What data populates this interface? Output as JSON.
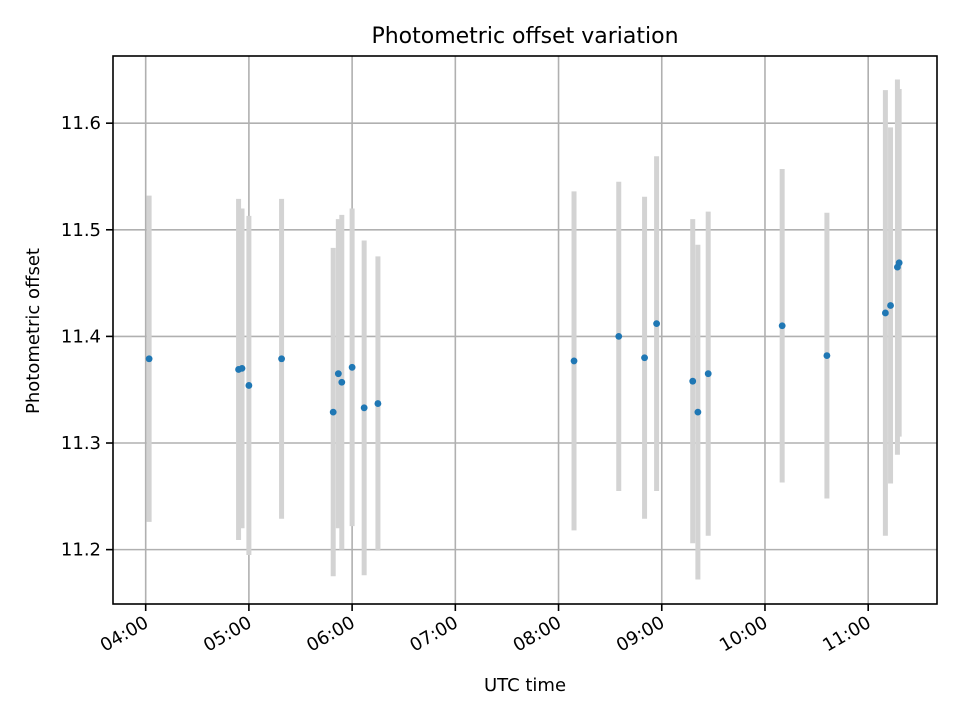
{
  "chart_data": {
    "type": "scatter",
    "title": "Photometric offset variation",
    "xlabel": "UTC time",
    "ylabel": "Photometric offset",
    "x_ticks": [
      "04:00",
      "05:00",
      "06:00",
      "07:00",
      "08:00",
      "09:00",
      "10:00",
      "11:00"
    ],
    "y_ticks": [
      "11.2",
      "11.3",
      "11.4",
      "11.5",
      "11.6"
    ],
    "xlim": [
      "03:41",
      "11:40"
    ],
    "ylim": [
      11.149,
      11.663
    ],
    "grid": true,
    "point_color": "#1f77b4",
    "errorbar_color": "#d3d3d3",
    "series": [
      {
        "points": [
          {
            "x": "04:02",
            "y": 11.379,
            "err": 0.153
          },
          {
            "x": "04:54",
            "y": 11.369,
            "err": 0.16
          },
          {
            "x": "04:56",
            "y": 11.37,
            "err": 0.15
          },
          {
            "x": "05:00",
            "y": 11.354,
            "err": 0.159
          },
          {
            "x": "05:19",
            "y": 11.379,
            "err": 0.15
          },
          {
            "x": "05:49",
            "y": 11.329,
            "err": 0.154
          },
          {
            "x": "05:52",
            "y": 11.365,
            "err": 0.145
          },
          {
            "x": "05:54",
            "y": 11.357,
            "err": 0.157
          },
          {
            "x": "06:00",
            "y": 11.371,
            "err": 0.149
          },
          {
            "x": "06:07",
            "y": 11.333,
            "err": 0.157
          },
          {
            "x": "06:15",
            "y": 11.337,
            "err": 0.138
          },
          {
            "x": "08:09",
            "y": 11.377,
            "err": 0.159
          },
          {
            "x": "08:35",
            "y": 11.4,
            "err": 0.145
          },
          {
            "x": "08:50",
            "y": 11.38,
            "err": 0.151
          },
          {
            "x": "08:57",
            "y": 11.412,
            "err": 0.157
          },
          {
            "x": "09:18",
            "y": 11.358,
            "err": 0.152
          },
          {
            "x": "09:21",
            "y": 11.329,
            "err": 0.157
          },
          {
            "x": "09:27",
            "y": 11.365,
            "err": 0.152
          },
          {
            "x": "10:10",
            "y": 11.41,
            "err": 0.147
          },
          {
            "x": "10:36",
            "y": 11.382,
            "err": 0.134
          },
          {
            "x": "11:10",
            "y": 11.422,
            "err": 0.209
          },
          {
            "x": "11:13",
            "y": 11.429,
            "err": 0.167
          },
          {
            "x": "11:17",
            "y": 11.465,
            "err": 0.176
          },
          {
            "x": "11:18",
            "y": 11.469,
            "err": 0.163
          }
        ]
      }
    ]
  }
}
